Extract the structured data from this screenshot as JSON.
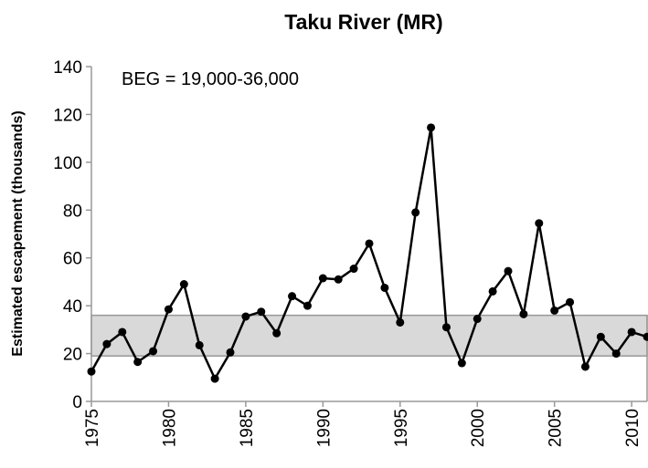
{
  "chart_data": {
    "type": "line",
    "title": "Taku River (MR)",
    "y_label": "Estimated escapement (thousands)",
    "annotation": "BEG = 19,000-36,000",
    "goal_range": [
      19,
      36
    ],
    "x": [
      1975,
      1976,
      1977,
      1978,
      1979,
      1980,
      1981,
      1982,
      1983,
      1984,
      1985,
      1986,
      1987,
      1988,
      1989,
      1990,
      1991,
      1992,
      1993,
      1994,
      1995,
      1996,
      1997,
      1998,
      1999,
      2000,
      2001,
      2002,
      2003,
      2004,
      2005,
      2006,
      2007,
      2008,
      2009,
      2010,
      2011
    ],
    "series": [
      {
        "color": "#000000",
        "values": [
          12.5,
          24,
          29,
          16.5,
          21,
          38.5,
          49,
          23.5,
          9.5,
          20.5,
          35.5,
          37.5,
          28.5,
          44,
          40,
          51.5,
          51,
          55.5,
          66,
          47.5,
          33,
          79,
          114.5,
          31,
          16,
          34.5,
          46,
          54.5,
          36.5,
          74.5,
          38,
          41.5,
          14.5,
          27,
          20,
          29,
          27
        ]
      }
    ],
    "xlim": [
      1975,
      2011
    ],
    "xticks": [
      1975,
      1980,
      1985,
      1990,
      1995,
      2000,
      2005,
      2010
    ],
    "ylim": [
      0,
      140
    ],
    "yticks": [
      0,
      20,
      40,
      60,
      80,
      100,
      120,
      140
    ],
    "band_color": "#d9d9d9",
    "grid": false
  }
}
